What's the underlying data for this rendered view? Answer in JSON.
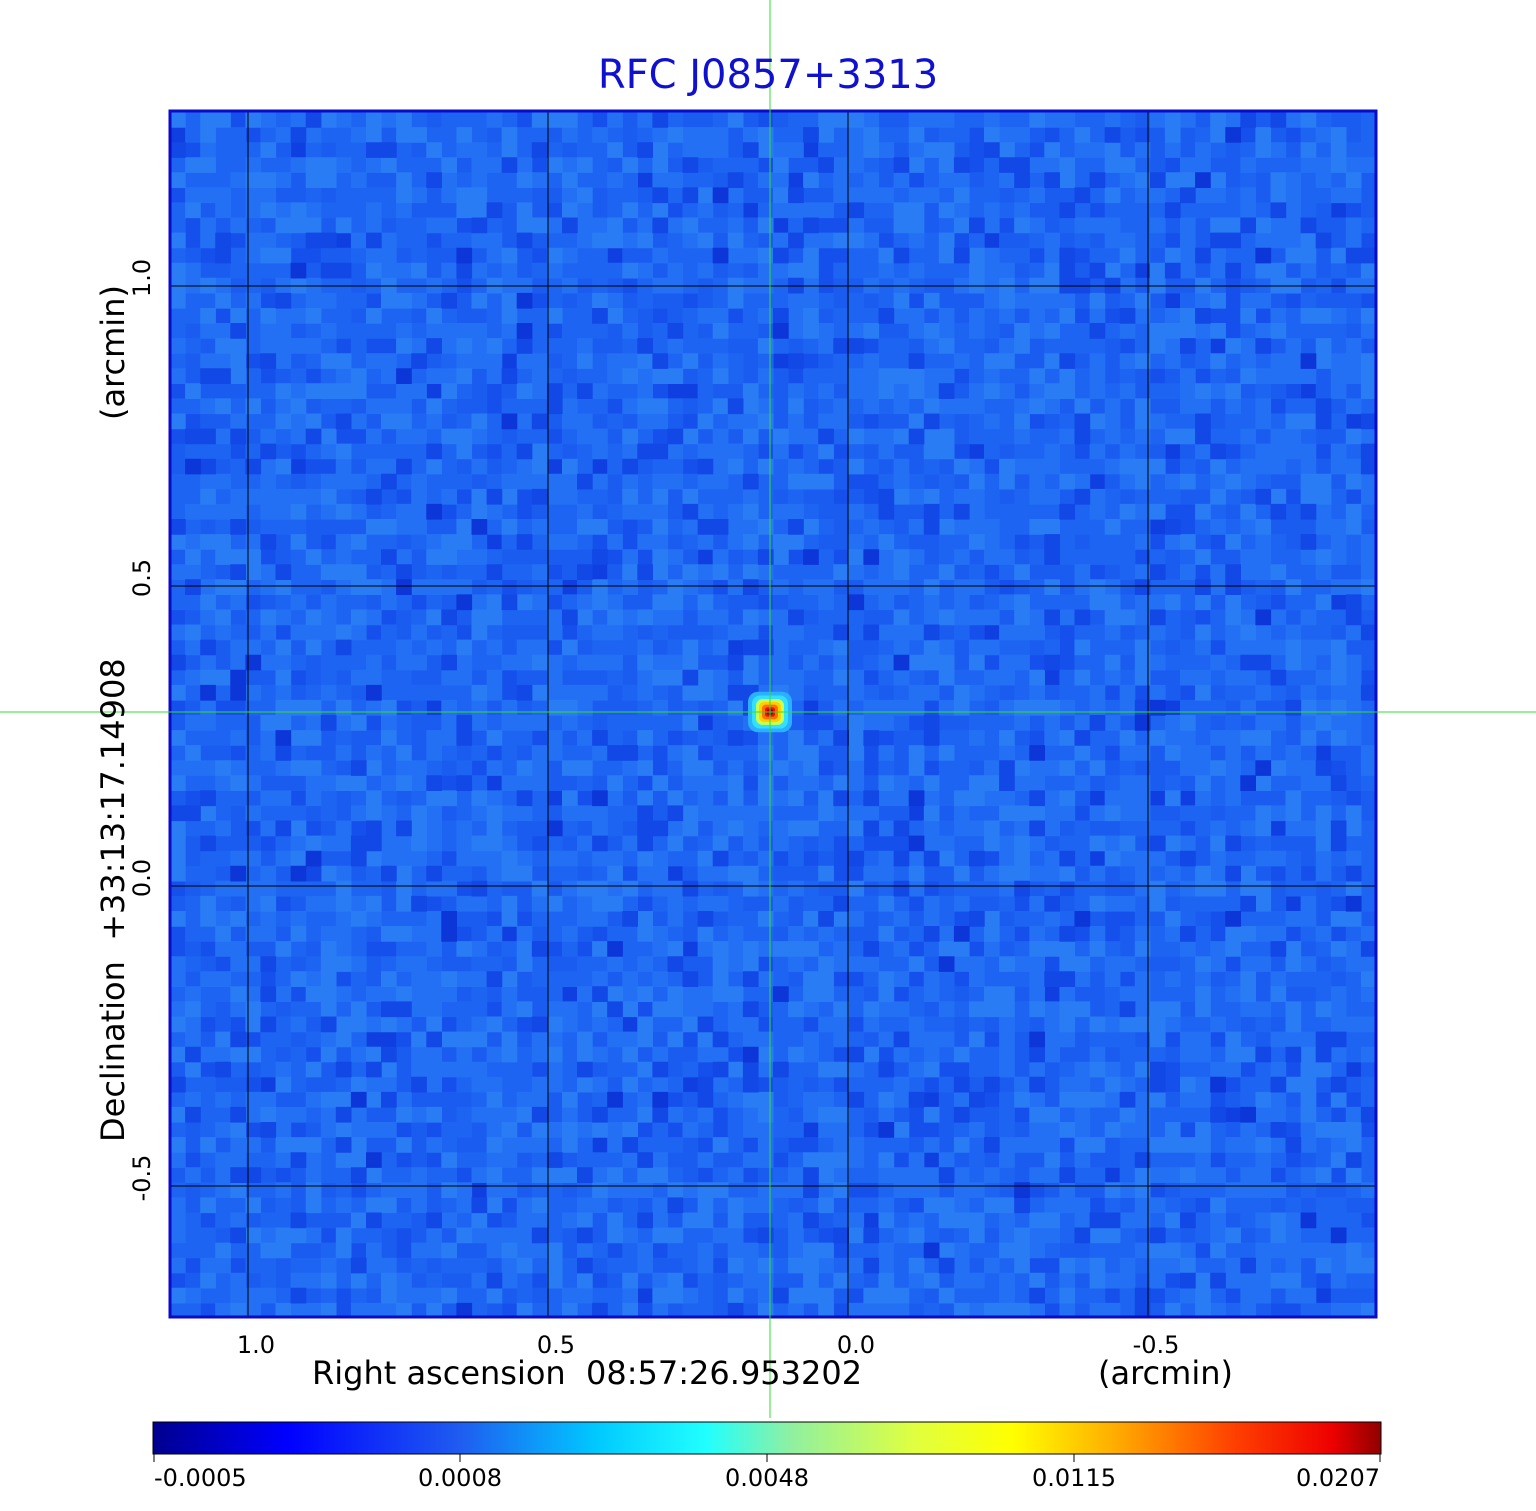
{
  "chart_data": {
    "type": "heatmap",
    "title": "RFC J0857+3313",
    "xlabel": "Right ascension  08:57:26.953202",
    "x_unit": "(arcmin)",
    "ylabel": "Declination  +33:13:17.14908",
    "y_unit": "(arcmin)",
    "xlim": [
      1.13,
      -0.88
    ],
    "ylim": [
      -0.72,
      1.29
    ],
    "x_ticks": [
      1.0,
      0.5,
      0.0,
      -0.5
    ],
    "x_tick_labels": [
      "1.0",
      "0.5",
      "0.0",
      "-0.5"
    ],
    "y_ticks": [
      1.0,
      0.5,
      0.0,
      -0.5
    ],
    "y_tick_labels": [
      "1.0",
      "0.5",
      "0.0",
      "-0.5"
    ],
    "grid": true,
    "source": {
      "x": 0.13,
      "y": 0.29,
      "peak": 0.0207
    },
    "crosshair": {
      "x": 0.13,
      "y": 0.29
    },
    "colorbar": {
      "min": -0.0005,
      "max": 0.0207,
      "tick_labels": [
        "-0.0005",
        "0.0008",
        "0.0048",
        "0.0115",
        "0.0207"
      ],
      "colormap": "jet"
    },
    "colors": {
      "title": "#1010d0",
      "frame": "#0a0ac8",
      "crosshair": "#33dd33",
      "background_noise": "#1a5cf0"
    }
  }
}
